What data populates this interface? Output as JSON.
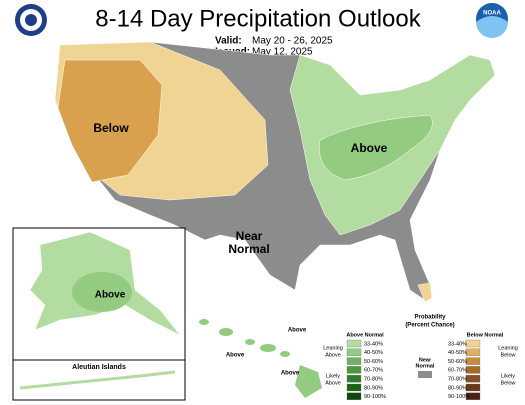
{
  "header": {
    "title": "8-14 Day Precipitation Outlook",
    "valid_label": "Valid:",
    "valid": "May 20 - 26, 2025",
    "issued_label": "Issued:",
    "issued": "May 12, 2025",
    "noaa": "NOAA"
  },
  "map_labels": {
    "below": "Below",
    "above_east": "Above",
    "near_normal": [
      "Near",
      "Normal"
    ],
    "alaska": "Above",
    "hawaii": [
      "Above",
      "Above",
      "Above"
    ],
    "aleutian": "Aleutian Islands"
  },
  "legend": {
    "title": [
      "Probability",
      "(Percent Chance)"
    ],
    "above_title": "Above Normal",
    "below_title": "Below Normal",
    "near_title": [
      "Near",
      "Normal"
    ],
    "above_bins": [
      {
        "label": "33-40%",
        "color": "#b3dca0"
      },
      {
        "label": "40-50%",
        "color": "#93cc80"
      },
      {
        "label": "50-60%",
        "color": "#6cb45c"
      },
      {
        "label": "60-70%",
        "color": "#4c9a3c"
      },
      {
        "label": "70-80%",
        "color": "#2f7f2a"
      },
      {
        "label": "80-90%",
        "color": "#1c6418"
      },
      {
        "label": "90-100%",
        "color": "#0e4510"
      }
    ],
    "below_bins": [
      {
        "label": "33-40%",
        "color": "#f0d493"
      },
      {
        "label": "40-50%",
        "color": "#e0b060"
      },
      {
        "label": "50-60%",
        "color": "#c98a3a"
      },
      {
        "label": "60-70%",
        "color": "#a86a2a"
      },
      {
        "label": "70-80%",
        "color": "#8a4e22"
      },
      {
        "label": "80-90%",
        "color": "#6a3818"
      },
      {
        "label": "90-100%",
        "color": "#4a2410"
      }
    ],
    "leaning_above": [
      "Leaning",
      "Above"
    ],
    "likely_above": [
      "Likely",
      "Above"
    ],
    "leaning_below": [
      "Leaning",
      "Below"
    ],
    "likely_below": [
      "Likely",
      "Below"
    ]
  }
}
